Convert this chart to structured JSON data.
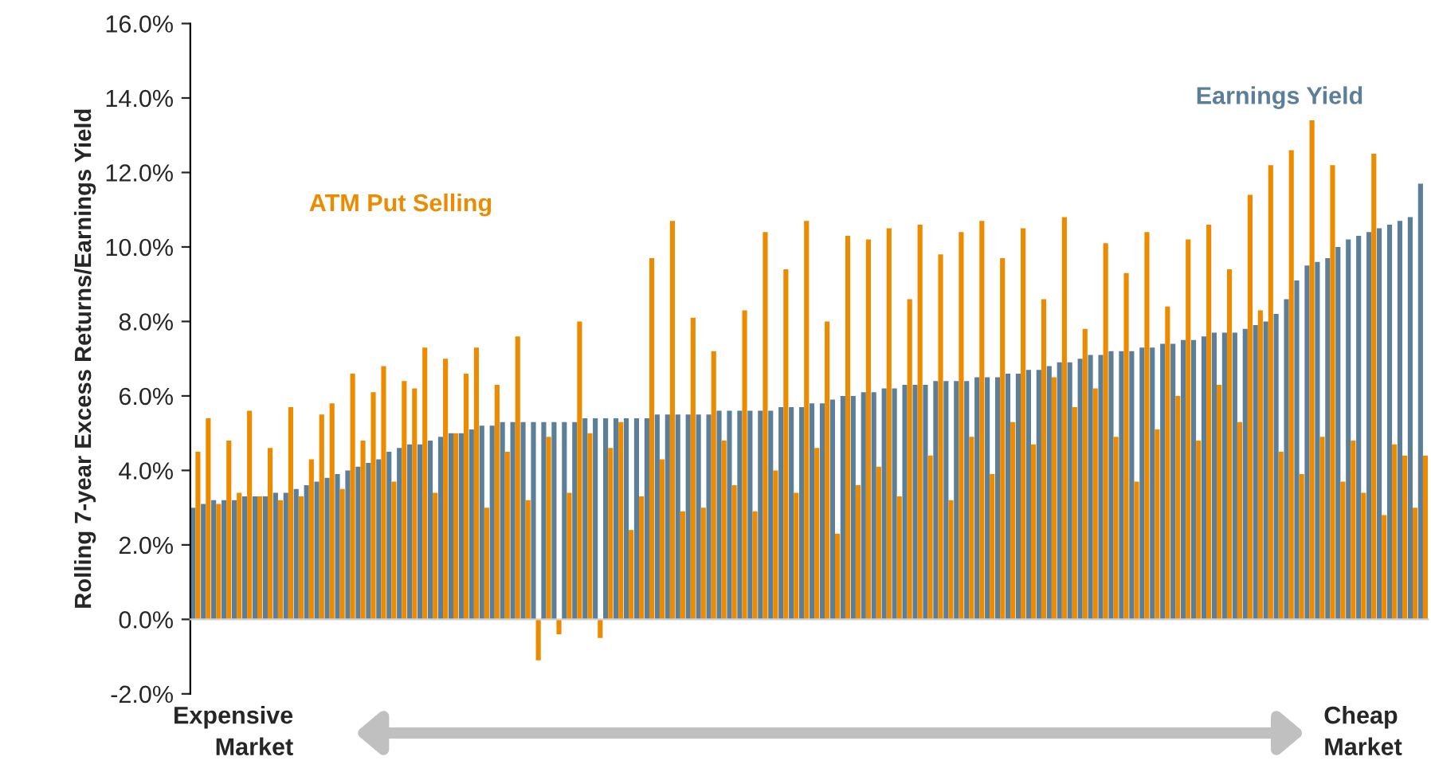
{
  "chart_data": {
    "type": "bar",
    "ylabel": "Rolling 7-year Excess Returns/Earnings Yield",
    "categories": [
      null,
      null,
      null,
      null,
      null,
      null,
      null,
      null,
      null,
      null,
      null,
      null,
      null,
      null,
      null,
      null,
      null,
      null,
      null,
      null,
      null,
      null,
      null,
      null,
      null,
      null,
      null,
      null,
      null,
      null,
      null,
      null,
      null,
      null,
      null,
      null,
      null,
      null,
      null,
      null,
      null,
      null,
      null,
      null,
      null,
      null,
      null,
      null,
      null,
      null,
      null,
      null,
      null,
      null,
      null,
      null,
      null,
      null,
      null,
      null,
      null,
      null,
      null,
      null,
      null,
      null,
      null,
      null,
      null,
      null,
      null,
      null,
      null,
      null,
      null,
      null,
      null,
      null,
      null,
      null,
      null,
      null,
      null,
      null,
      null,
      null,
      null,
      null,
      null,
      null,
      null,
      null,
      null,
      null,
      null,
      null,
      null,
      null,
      null,
      null,
      null,
      null,
      null,
      null,
      null,
      null,
      null,
      null,
      null,
      null,
      null,
      null,
      null,
      null,
      null,
      null,
      null,
      null,
      null,
      null
    ],
    "series": [
      {
        "name": "Earnings Yield",
        "color": "#5b7f99",
        "values": [
          3.0,
          3.1,
          3.2,
          3.2,
          3.2,
          3.3,
          3.3,
          3.3,
          3.4,
          3.4,
          3.5,
          3.6,
          3.7,
          3.8,
          3.9,
          4.0,
          4.1,
          4.2,
          4.3,
          4.5,
          4.6,
          4.7,
          4.7,
          4.8,
          4.9,
          5.0,
          5.0,
          5.1,
          5.2,
          5.2,
          5.3,
          5.3,
          5.3,
          5.3,
          5.3,
          5.3,
          5.3,
          5.3,
          5.4,
          5.4,
          5.4,
          5.4,
          5.4,
          5.4,
          5.4,
          5.5,
          5.5,
          5.5,
          5.5,
          5.5,
          5.5,
          5.6,
          5.6,
          5.6,
          5.6,
          5.6,
          5.6,
          5.7,
          5.7,
          5.7,
          5.8,
          5.8,
          5.9,
          6.0,
          6.0,
          6.1,
          6.1,
          6.2,
          6.2,
          6.3,
          6.3,
          6.3,
          6.4,
          6.4,
          6.4,
          6.4,
          6.5,
          6.5,
          6.5,
          6.6,
          6.6,
          6.7,
          6.7,
          6.8,
          6.9,
          6.9,
          7.0,
          7.1,
          7.1,
          7.2,
          7.2,
          7.2,
          7.3,
          7.3,
          7.4,
          7.4,
          7.5,
          7.5,
          7.6,
          7.7,
          7.7,
          7.7,
          7.8,
          7.9,
          8.0,
          8.2,
          8.6,
          9.1,
          9.5,
          9.6,
          9.7,
          10.0,
          10.2,
          10.3,
          10.4,
          10.5,
          10.6,
          10.7,
          10.8,
          11.7
        ]
      },
      {
        "name": "ATM Put Selling",
        "color": "#ed8b00",
        "values": [
          4.5,
          5.4,
          3.1,
          4.8,
          3.4,
          5.6,
          3.3,
          4.6,
          3.2,
          5.7,
          3.3,
          4.3,
          5.5,
          5.8,
          3.5,
          6.6,
          4.8,
          6.1,
          6.8,
          3.7,
          6.4,
          6.2,
          7.3,
          3.4,
          7.0,
          5.0,
          6.6,
          7.3,
          3.0,
          6.3,
          4.5,
          7.6,
          3.2,
          -1.1,
          4.9,
          -0.4,
          3.4,
          8.0,
          5.0,
          -0.5,
          4.6,
          5.3,
          2.4,
          3.3,
          9.7,
          4.3,
          10.7,
          2.9,
          8.1,
          3.0,
          7.2,
          4.8,
          3.6,
          8.3,
          2.9,
          10.4,
          4.0,
          9.4,
          3.4,
          10.7,
          4.6,
          8.0,
          2.3,
          10.3,
          3.6,
          10.2,
          4.1,
          10.5,
          3.3,
          8.6,
          10.6,
          4.4,
          9.8,
          3.2,
          10.4,
          4.9,
          10.7,
          3.9,
          9.7,
          5.3,
          10.5,
          4.7,
          8.6,
          6.5,
          10.8,
          5.7,
          7.8,
          6.2,
          10.1,
          4.9,
          9.3,
          3.7,
          10.4,
          5.1,
          8.4,
          6.0,
          10.2,
          4.8,
          10.6,
          6.3,
          9.4,
          5.3,
          11.4,
          8.3,
          12.2,
          4.5,
          12.6,
          3.9,
          13.4,
          4.9,
          12.2,
          3.7,
          4.8,
          3.4,
          12.5,
          2.8,
          4.7,
          4.4,
          3.0,
          4.4
        ]
      }
    ],
    "ylim": [
      -2,
      16
    ],
    "yticks": [
      {
        "value": -2,
        "label": "-2.0%"
      },
      {
        "value": 0,
        "label": "0.0%"
      },
      {
        "value": 2,
        "label": "2.0%"
      },
      {
        "value": 4,
        "label": "4.0%"
      },
      {
        "value": 6,
        "label": "6.0%"
      },
      {
        "value": 8,
        "label": "8.0%"
      },
      {
        "value": 10,
        "label": "10.0%"
      },
      {
        "value": 12,
        "label": "12.0%"
      },
      {
        "value": 14,
        "label": "14.0%"
      },
      {
        "value": 16,
        "label": "16.0%"
      }
    ],
    "tick_labels": "y",
    "legend": false,
    "annotations": [
      "Expensive\nMarket",
      "Cheap\nMarket"
    ]
  }
}
